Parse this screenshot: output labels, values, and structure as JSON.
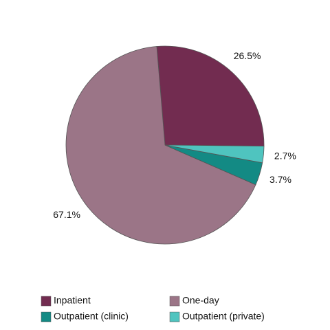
{
  "chart_data": {
    "type": "pie",
    "categories": [
      "Inpatient",
      "One-day",
      "Outpatient (clinic)",
      "Outpatient (private)"
    ],
    "values": [
      26.5,
      67.1,
      3.7,
      2.7
    ],
    "value_labels": [
      "26.5%",
      "67.1%",
      "3.7%",
      "2.7%"
    ],
    "colors": [
      "#722c50",
      "#9b7587",
      "#138a84",
      "#4fc4bf"
    ]
  }
}
